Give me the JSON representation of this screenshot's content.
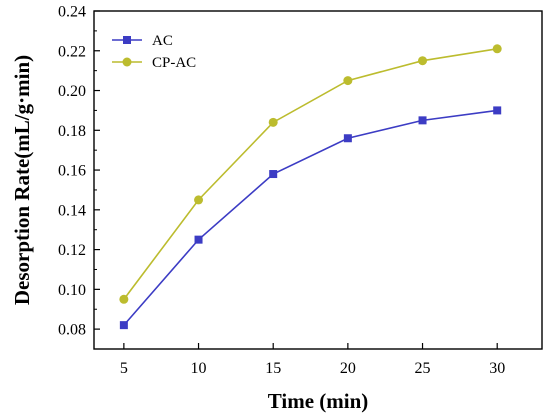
{
  "chart_data": {
    "type": "line",
    "title": "",
    "xlabel": "Time (min)",
    "ylabel": "Desorption Rate(mL/g·min)",
    "x": [
      5,
      10,
      15,
      20,
      25,
      30
    ],
    "xlim": [
      3,
      33
    ],
    "ylim": [
      0.07,
      0.24
    ],
    "xticks": [
      5,
      10,
      15,
      20,
      25,
      30
    ],
    "xtick_labels": [
      "5",
      "10",
      "15",
      "20",
      "25",
      "30"
    ],
    "yticks": [
      0.08,
      0.1,
      0.12,
      0.14,
      0.16,
      0.18,
      0.2,
      0.22,
      0.24
    ],
    "ytick_labels": [
      "0.08",
      "0.10",
      "0.12",
      "0.14",
      "0.16",
      "0.18",
      "0.20",
      "0.22",
      "0.24"
    ],
    "grid": false,
    "legend_position": "top-left",
    "series": [
      {
        "name": "AC",
        "values": [
          0.082,
          0.125,
          0.158,
          0.176,
          0.185,
          0.19
        ],
        "color": "#3c3cc4",
        "marker": "square"
      },
      {
        "name": "CP-AC",
        "values": [
          0.095,
          0.145,
          0.184,
          0.205,
          0.215,
          0.221
        ],
        "color": "#bcbc2e",
        "marker": "circle"
      }
    ]
  }
}
